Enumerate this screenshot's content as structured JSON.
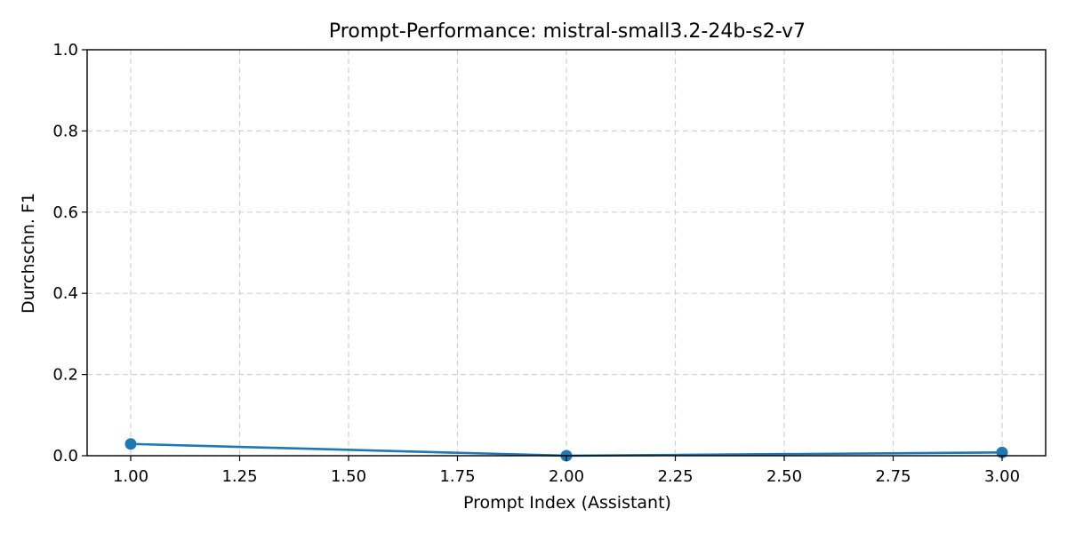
{
  "chart_data": {
    "type": "line",
    "title": "Prompt-Performance: mistral-small3.2-24b-s2-v7",
    "xlabel": "Prompt Index (Assistant)",
    "ylabel": "Durchschn. F1",
    "xlim": [
      0.9,
      3.1
    ],
    "ylim": [
      0.0,
      1.0
    ],
    "xticks": [
      "1.00",
      "1.25",
      "1.50",
      "1.75",
      "2.00",
      "2.25",
      "2.50",
      "2.75",
      "3.00"
    ],
    "xtick_values": [
      1.0,
      1.25,
      1.5,
      1.75,
      2.0,
      2.25,
      2.5,
      2.75,
      3.0
    ],
    "yticks": [
      "0.0",
      "0.2",
      "0.4",
      "0.6",
      "0.8",
      "1.0"
    ],
    "ytick_values": [
      0.0,
      0.2,
      0.4,
      0.6,
      0.8,
      1.0
    ],
    "grid": true,
    "series": [
      {
        "x": [
          1,
          2,
          3
        ],
        "values": [
          0.029,
          0.0,
          0.008
        ],
        "color": "#1f77b4",
        "marker": "circle"
      }
    ]
  }
}
